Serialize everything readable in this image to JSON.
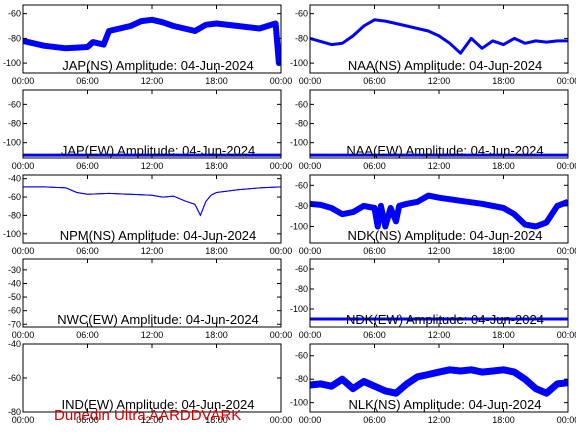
{
  "credit": "Dunedin Ultra AARDDVARK",
  "colors": {
    "trace": "#0000ff",
    "credit": "#d40000",
    "axes": "#000000",
    "background": "#ffffff"
  },
  "chart_data": [
    {
      "type": "line",
      "title": "JAP(NS) Amplitude: 04-Jun-2024",
      "x_ticks": [
        "00:00",
        "06:00",
        "12:00",
        "18:00",
        "00:00"
      ],
      "y_ticks": [
        "-60",
        "-80",
        "-100"
      ],
      "ylim": [
        -108,
        -53
      ],
      "xlim": [
        0,
        24
      ],
      "band": 6,
      "series": [
        {
          "x": [
            0,
            2,
            4,
            6,
            6.5,
            7.5,
            8,
            10,
            11,
            12,
            13,
            14,
            15,
            16,
            17,
            18,
            20,
            22,
            23.5,
            23.8,
            24
          ],
          "y": [
            -82,
            -86,
            -88,
            -87,
            -83,
            -85,
            -74,
            -70,
            -66,
            -65,
            -67,
            -70,
            -72,
            -74,
            -69,
            -68,
            -70,
            -72,
            -68,
            -100,
            -86
          ]
        }
      ]
    },
    {
      "type": "line",
      "title": "NAA(NS) Amplitude: 04-Jun-2024",
      "x_ticks": [
        "00:00",
        "06:00",
        "12:00",
        "18:00",
        "00:00"
      ],
      "y_ticks": [
        "-60",
        "-80",
        "-100"
      ],
      "ylim": [
        -108,
        -53
      ],
      "xlim": [
        0,
        24
      ],
      "band": 3,
      "series": [
        {
          "x": [
            0,
            2,
            3,
            4,
            5,
            6,
            7,
            8,
            9,
            10,
            11,
            12,
            13,
            14,
            15,
            16,
            17,
            18,
            19,
            20,
            21,
            22,
            23,
            24
          ],
          "y": [
            -80,
            -85,
            -84,
            -78,
            -70,
            -65,
            -66,
            -68,
            -70,
            -72,
            -74,
            -78,
            -84,
            -92,
            -80,
            -88,
            -82,
            -85,
            -80,
            -84,
            -82,
            -83,
            -82,
            -82
          ]
        }
      ]
    },
    {
      "type": "line",
      "title": "JAP(EW) Amplitude: 04-Jun-2024",
      "x_ticks": [
        "00:00",
        "06:00",
        "12:00",
        "18:00",
        "00:00"
      ],
      "y_ticks": [
        "-60",
        "-80",
        "-100"
      ],
      "ylim": [
        -116,
        -45
      ],
      "xlim": [
        0,
        24
      ],
      "band": 3,
      "series": [
        {
          "x": [
            0,
            24
          ],
          "y": [
            -113,
            -113
          ]
        }
      ]
    },
    {
      "type": "line",
      "title": "NAA(EW) Amplitude: 04-Jun-2024",
      "x_ticks": [
        "00:00",
        "06:00",
        "12:00",
        "18:00",
        "00:00"
      ],
      "y_ticks": [
        "-60",
        "-80",
        "-100"
      ],
      "ylim": [
        -116,
        -45
      ],
      "xlim": [
        0,
        24
      ],
      "band": 3,
      "series": [
        {
          "x": [
            0,
            24
          ],
          "y": [
            -113,
            -113
          ]
        }
      ]
    },
    {
      "type": "line",
      "title": "NPM(NS) Amplitude: 04-Jun-2024",
      "x_ticks": [
        "00:00",
        "06:00",
        "12:00",
        "18:00",
        "00:00"
      ],
      "y_ticks": [
        "-40",
        "-60",
        "-80",
        "-100"
      ],
      "ylim": [
        -110,
        -36
      ],
      "xlim": [
        0,
        24
      ],
      "band": 1,
      "series": [
        {
          "x": [
            0,
            2,
            4,
            5,
            6,
            8,
            10,
            12,
            13,
            14,
            15,
            16,
            16.5,
            17,
            17.5,
            18,
            20,
            22,
            24
          ],
          "y": [
            -49,
            -49,
            -50,
            -55,
            -57,
            -56,
            -57,
            -58,
            -60,
            -59,
            -64,
            -68,
            -80,
            -65,
            -58,
            -55,
            -52,
            -50,
            -49
          ]
        }
      ]
    },
    {
      "type": "line",
      "title": "NDK(NS) Amplitude: 04-Jun-2024",
      "x_ticks": [
        "00:00",
        "06:00",
        "12:00",
        "18:00",
        "00:00"
      ],
      "y_ticks": [
        "-60",
        "-80",
        "-100"
      ],
      "ylim": [
        -116,
        -50
      ],
      "xlim": [
        0,
        24
      ],
      "band": 6,
      "series": [
        {
          "x": [
            0,
            1,
            2,
            3,
            4,
            5,
            6,
            6.3,
            6.6,
            7,
            7.5,
            8,
            8.3,
            9,
            10,
            11,
            12,
            14,
            16,
            18,
            19,
            20,
            21,
            22,
            23,
            24
          ],
          "y": [
            -78,
            -79,
            -82,
            -88,
            -86,
            -80,
            -82,
            -100,
            -80,
            -100,
            -82,
            -95,
            -80,
            -78,
            -76,
            -70,
            -72,
            -75,
            -78,
            -82,
            -88,
            -98,
            -100,
            -96,
            -80,
            -76
          ]
        }
      ]
    },
    {
      "type": "line",
      "title": "NWC(EW) Amplitude: 04-Jun-2024",
      "x_ticks": [
        "00:00",
        "06:00",
        "12:00",
        "18:00",
        "00:00"
      ],
      "y_ticks": [
        "-30",
        "-40",
        "-50",
        "-60",
        "-70"
      ],
      "ylim": [
        -72,
        -22
      ],
      "xlim": [
        0,
        24
      ],
      "band": 0,
      "series": []
    },
    {
      "type": "line",
      "title": "NDK(EW) Amplitude: 04-Jun-2024",
      "x_ticks": [
        "00:00",
        "06:00",
        "12:00",
        "18:00",
        "00:00"
      ],
      "y_ticks": [
        "-60",
        "-80",
        "-100"
      ],
      "ylim": [
        -118,
        -50
      ],
      "xlim": [
        0,
        24
      ],
      "band": 3,
      "series": [
        {
          "x": [
            0,
            24
          ],
          "y": [
            -110,
            -110
          ]
        }
      ]
    },
    {
      "type": "line",
      "title": "IND(EW) Amplitude: 04-Jun-2024",
      "x_ticks": [
        "00:00",
        "06:00",
        "12:00",
        "18:00",
        "00:00"
      ],
      "y_ticks": [
        "-40",
        "-60",
        "-80"
      ],
      "ylim": [
        -80,
        -40
      ],
      "xlim": [
        0,
        24
      ],
      "band": 0,
      "series": []
    },
    {
      "type": "line",
      "title": "NLK(NS) Amplitude: 04-Jun-2024",
      "x_ticks": [
        "00:00",
        "06:00",
        "12:00",
        "18:00",
        "00:00"
      ],
      "y_ticks": [
        "-60",
        "-80",
        "-100"
      ],
      "ylim": [
        -108,
        -50
      ],
      "xlim": [
        0,
        24
      ],
      "band": 7,
      "series": [
        {
          "x": [
            0,
            1,
            2,
            3,
            4,
            5,
            6,
            7,
            8,
            9,
            10,
            11,
            12,
            13,
            14,
            15,
            16,
            17,
            18,
            19,
            20,
            21,
            22,
            23,
            24
          ],
          "y": [
            -85,
            -84,
            -86,
            -80,
            -88,
            -82,
            -86,
            -90,
            -92,
            -84,
            -78,
            -76,
            -74,
            -72,
            -73,
            -72,
            -74,
            -73,
            -72,
            -74,
            -80,
            -88,
            -92,
            -84,
            -83
          ]
        }
      ]
    }
  ]
}
